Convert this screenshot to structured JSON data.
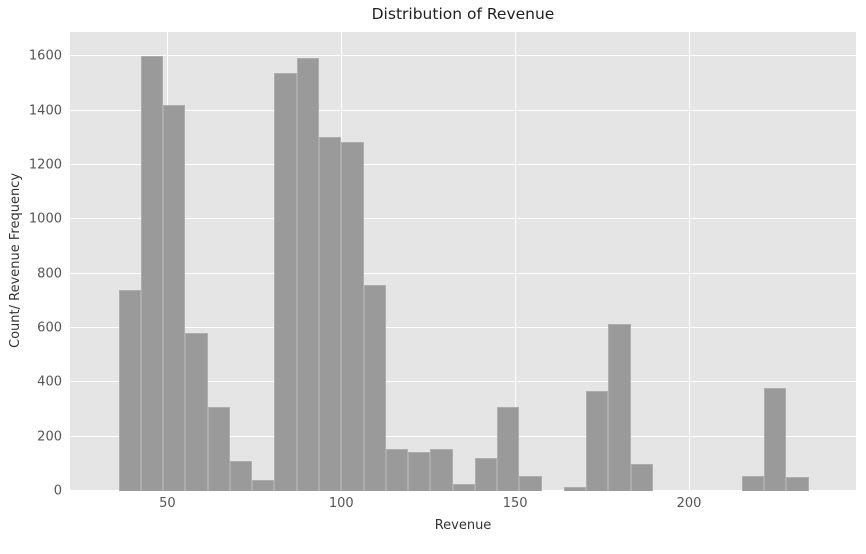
{
  "chart_data": {
    "type": "bar",
    "subtype": "histogram",
    "title": "Distribution of Revenue",
    "xlabel": "Revenue",
    "ylabel": "Count/ Revenue Frequency",
    "bin_start": 36,
    "bin_width": 6.4,
    "values": [
      740,
      1600,
      1420,
      580,
      310,
      110,
      40,
      1540,
      1595,
      1305,
      1285,
      760,
      155,
      145,
      155,
      25,
      120,
      310,
      55,
      0,
      15,
      370,
      615,
      100,
      0,
      0,
      0,
      0,
      55,
      380,
      50
    ],
    "xticks": [
      50,
      100,
      150,
      200
    ],
    "yticks": [
      0,
      200,
      400,
      600,
      800,
      1000,
      1200,
      1400,
      1600
    ],
    "xlim": [
      22,
      248
    ],
    "ylim": [
      0,
      1690
    ],
    "grid": "on",
    "legend": "none",
    "colors": {
      "bar": "#9a9a9a",
      "bar_edge": "#adadad",
      "plot_background": "#e5e5e5",
      "grid_line": "#ffffff",
      "tick_text": "#555555",
      "title_text": "#1f1f1f"
    }
  }
}
